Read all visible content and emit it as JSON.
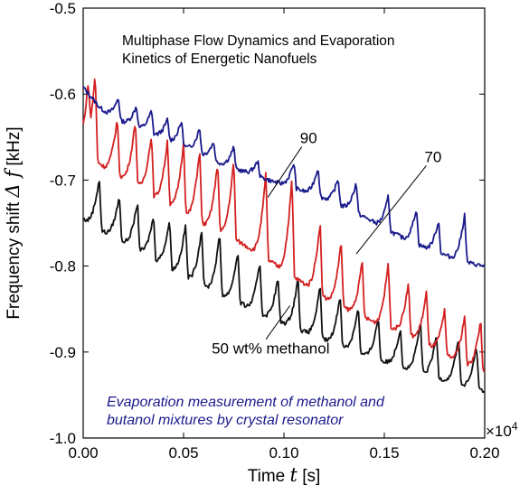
{
  "chart_data": {
    "type": "line",
    "title_lines": [
      "Multiphase Flow Dynamics and Evaporation",
      "Kinetics of Energetic Nanofuels"
    ],
    "xlabel": {
      "text": "Time ",
      "symbol": "t",
      "unit": " [s]"
    },
    "ylabel": {
      "text": "Frequency shift ",
      "symbol": "Δ f",
      "unit": " [kHz]"
    },
    "x_multiplier": {
      "base": "×10",
      "exponent": "4"
    },
    "xlim": [
      0,
      0.2
    ],
    "ylim": [
      -1.0,
      -0.5
    ],
    "x_ticks": [
      0,
      0.05,
      0.1,
      0.15,
      0.2
    ],
    "x_tick_labels": [
      "0.00",
      "0.05",
      "0.10",
      "0.15",
      "0.20"
    ],
    "y_ticks": [
      -0.5,
      -0.6,
      -0.7,
      -0.8,
      -0.9,
      -1.0
    ],
    "y_tick_labels": [
      "-0.5",
      "-0.6",
      "-0.7",
      "-0.8",
      "-0.9",
      "-1.0"
    ],
    "grid": false,
    "colors": {
      "series_90": "#1a1a8c",
      "series_70": "#d42020",
      "series_50": "#111111",
      "caption": "#1a1a8c"
    },
    "caption_lines": [
      "Evaporation measurement of methanol and",
      "butanol mixtures by crystal resonator"
    ],
    "annotations": [
      {
        "text": "90",
        "text_at": [
          0.108,
          -0.657
        ],
        "arrow_to": [
          0.092,
          -0.72
        ]
      },
      {
        "text": "70",
        "text_at": [
          0.17,
          -0.679
        ],
        "arrow_to": [
          0.136,
          -0.786
        ]
      },
      {
        "text": "50 wt% methanol",
        "text_at": [
          0.064,
          -0.902
        ],
        "arrow_to": [
          0.103,
          -0.846
        ]
      }
    ],
    "series": [
      {
        "name": "90",
        "x": [
          0,
          0.002,
          0.005,
          0.008,
          0.012,
          0.016,
          0.02,
          0.025,
          0.03,
          0.035,
          0.04,
          0.045,
          0.05,
          0.055,
          0.06,
          0.065,
          0.07,
          0.075,
          0.08,
          0.085,
          0.09,
          0.095,
          0.1,
          0.105,
          0.11,
          0.115,
          0.12,
          0.125,
          0.13,
          0.135,
          0.14,
          0.145,
          0.15,
          0.155,
          0.16,
          0.165,
          0.17,
          0.175,
          0.18,
          0.185,
          0.19,
          0.195,
          0.2
        ],
        "y": [
          -0.592,
          -0.598,
          -0.606,
          -0.615,
          -0.622,
          -0.628,
          -0.632,
          -0.636,
          -0.641,
          -0.646,
          -0.651,
          -0.656,
          -0.66,
          -0.666,
          -0.671,
          -0.677,
          -0.682,
          -0.686,
          -0.69,
          -0.694,
          -0.698,
          -0.702,
          -0.705,
          -0.709,
          -0.713,
          -0.717,
          -0.721,
          -0.726,
          -0.731,
          -0.737,
          -0.743,
          -0.749,
          -0.756,
          -0.762,
          -0.768,
          -0.773,
          -0.778,
          -0.783,
          -0.787,
          -0.791,
          -0.795,
          -0.798,
          -0.8
        ],
        "peaks": [
          {
            "x": 0.0175,
            "h": 0.026
          },
          {
            "x": 0.0265,
            "h": 0.024
          },
          {
            "x": 0.034,
            "h": 0.026
          },
          {
            "x": 0.042,
            "h": 0.024
          },
          {
            "x": 0.049,
            "h": 0.028
          },
          {
            "x": 0.058,
            "h": 0.03
          },
          {
            "x": 0.065,
            "h": 0.022
          },
          {
            "x": 0.075,
            "h": 0.025
          },
          {
            "x": 0.087,
            "h": 0.018
          },
          {
            "x": 0.105,
            "h": 0.03
          },
          {
            "x": 0.117,
            "h": 0.034
          },
          {
            "x": 0.127,
            "h": 0.03
          },
          {
            "x": 0.136,
            "h": 0.036
          },
          {
            "x": 0.152,
            "h": 0.04
          },
          {
            "x": 0.166,
            "h": 0.042
          },
          {
            "x": 0.177,
            "h": 0.038
          },
          {
            "x": 0.19,
            "h": 0.055
          }
        ]
      },
      {
        "name": "70",
        "x": [
          0,
          0.003,
          0.006,
          0.01,
          0.015,
          0.02,
          0.025,
          0.03,
          0.035,
          0.04,
          0.045,
          0.05,
          0.055,
          0.06,
          0.065,
          0.07,
          0.075,
          0.08,
          0.085,
          0.09,
          0.095,
          0.1,
          0.105,
          0.11,
          0.115,
          0.12,
          0.125,
          0.13,
          0.135,
          0.14,
          0.145,
          0.15,
          0.155,
          0.16,
          0.165,
          0.17,
          0.175,
          0.18,
          0.185,
          0.19,
          0.195,
          0.2
        ],
        "y": [
          -0.66,
          -0.668,
          -0.676,
          -0.684,
          -0.69,
          -0.697,
          -0.703,
          -0.71,
          -0.718,
          -0.725,
          -0.731,
          -0.738,
          -0.745,
          -0.751,
          -0.756,
          -0.762,
          -0.768,
          -0.775,
          -0.782,
          -0.79,
          -0.797,
          -0.806,
          -0.813,
          -0.82,
          -0.828,
          -0.836,
          -0.842,
          -0.848,
          -0.854,
          -0.86,
          -0.865,
          -0.868,
          -0.872,
          -0.877,
          -0.882,
          -0.888,
          -0.895,
          -0.902,
          -0.908,
          -0.913,
          -0.918,
          -0.925
        ],
        "peaks": [
          {
            "x": 0.0025,
            "h": 0.06
          },
          {
            "x": 0.006,
            "h": 0.1
          },
          {
            "x": 0.017,
            "h": 0.065
          },
          {
            "x": 0.026,
            "h": 0.075
          },
          {
            "x": 0.034,
            "h": 0.07
          },
          {
            "x": 0.042,
            "h": 0.075
          },
          {
            "x": 0.05,
            "h": 0.082
          },
          {
            "x": 0.058,
            "h": 0.085
          },
          {
            "x": 0.067,
            "h": 0.08
          },
          {
            "x": 0.075,
            "h": 0.092
          },
          {
            "x": 0.091,
            "h": 0.1
          },
          {
            "x": 0.104,
            "h": 0.115
          },
          {
            "x": 0.118,
            "h": 0.085
          },
          {
            "x": 0.1285,
            "h": 0.075
          },
          {
            "x": 0.139,
            "h": 0.065
          },
          {
            "x": 0.152,
            "h": 0.075
          },
          {
            "x": 0.162,
            "h": 0.06
          },
          {
            "x": 0.171,
            "h": 0.06
          },
          {
            "x": 0.18,
            "h": 0.05
          },
          {
            "x": 0.19,
            "h": 0.055
          },
          {
            "x": 0.198,
            "h": 0.06
          }
        ]
      },
      {
        "name": "50 wt% methanol",
        "x": [
          0,
          0.005,
          0.01,
          0.015,
          0.02,
          0.025,
          0.03,
          0.035,
          0.04,
          0.045,
          0.05,
          0.055,
          0.06,
          0.065,
          0.07,
          0.075,
          0.08,
          0.085,
          0.09,
          0.095,
          0.1,
          0.105,
          0.11,
          0.115,
          0.12,
          0.125,
          0.13,
          0.135,
          0.14,
          0.145,
          0.15,
          0.155,
          0.16,
          0.165,
          0.17,
          0.175,
          0.18,
          0.185,
          0.19,
          0.195,
          0.2
        ],
        "y": [
          -0.745,
          -0.752,
          -0.76,
          -0.764,
          -0.771,
          -0.777,
          -0.784,
          -0.791,
          -0.797,
          -0.804,
          -0.81,
          -0.817,
          -0.823,
          -0.829,
          -0.834,
          -0.84,
          -0.845,
          -0.851,
          -0.857,
          -0.862,
          -0.866,
          -0.871,
          -0.876,
          -0.881,
          -0.885,
          -0.89,
          -0.894,
          -0.899,
          -0.903,
          -0.907,
          -0.911,
          -0.914,
          -0.918,
          -0.921,
          -0.925,
          -0.929,
          -0.932,
          -0.936,
          -0.939,
          -0.942,
          -0.945
        ],
        "peaks": [
          {
            "x": 0.008,
            "h": 0.06
          },
          {
            "x": 0.018,
            "h": 0.05
          },
          {
            "x": 0.027,
            "h": 0.055
          },
          {
            "x": 0.035,
            "h": 0.05
          },
          {
            "x": 0.043,
            "h": 0.055
          },
          {
            "x": 0.051,
            "h": 0.06
          },
          {
            "x": 0.059,
            "h": 0.065
          },
          {
            "x": 0.068,
            "h": 0.07
          },
          {
            "x": 0.077,
            "h": 0.06
          },
          {
            "x": 0.088,
            "h": 0.06
          },
          {
            "x": 0.097,
            "h": 0.05
          },
          {
            "x": 0.107,
            "h": 0.06
          },
          {
            "x": 0.118,
            "h": 0.06
          },
          {
            "x": 0.128,
            "h": 0.06
          },
          {
            "x": 0.137,
            "h": 0.055
          },
          {
            "x": 0.147,
            "h": 0.05
          },
          {
            "x": 0.158,
            "h": 0.045
          },
          {
            "x": 0.168,
            "h": 0.06
          },
          {
            "x": 0.176,
            "h": 0.05
          },
          {
            "x": 0.187,
            "h": 0.055
          },
          {
            "x": 0.196,
            "h": 0.05
          }
        ]
      }
    ]
  }
}
